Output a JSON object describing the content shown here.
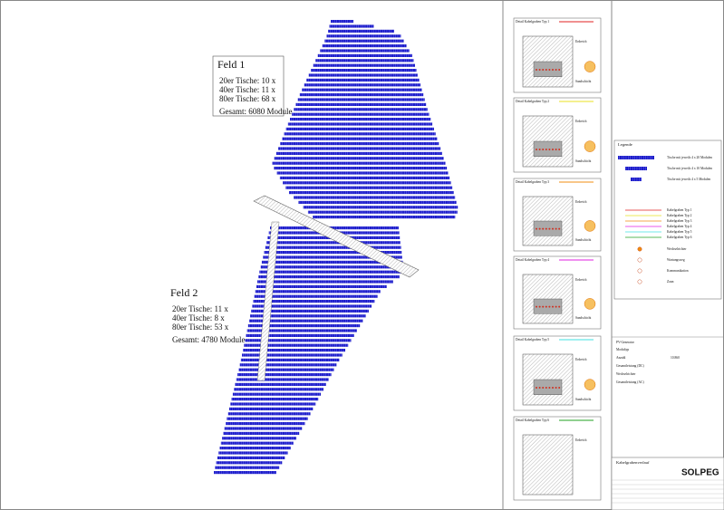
{
  "fields": [
    {
      "title": "Feld 1",
      "lines": [
        "20er Tische: 10 x",
        "40er Tische: 11 x",
        "80er Tische: 68 x"
      ],
      "total": "Gesamt: 6080 Module"
    },
    {
      "title": "Feld 2",
      "lines": [
        "20er Tische: 11 x",
        "40er Tische:   8 x",
        "80er Tische: 53 x"
      ],
      "total": "Gesamt: 4780 Module"
    }
  ],
  "details": [
    {
      "title": "Detail Kabelgraben Typ 1",
      "color": "#e02020",
      "labels": [
        "Erdreich",
        "Sandschicht"
      ]
    },
    {
      "title": "Detail Kabelgraben Typ 2",
      "color": "#e8e020",
      "labels": [
        "Erdreich",
        "Sandschicht"
      ]
    },
    {
      "title": "Detail Kabelgraben Typ 3",
      "color": "#f08c10",
      "labels": [
        "Erdreich",
        "Sandschicht"
      ]
    },
    {
      "title": "Detail Kabelgraben Typ 4",
      "color": "#e020e0",
      "labels": [
        "Erdreich",
        "Sandschicht"
      ]
    },
    {
      "title": "Detail Kabelgraben Typ 5",
      "color": "#40e0e0",
      "labels": [
        "Erdreich",
        "Sandschicht"
      ]
    },
    {
      "title": "Detail Kabelgraben Typ 6",
      "color": "#20a020",
      "labels": [
        "Erdreich"
      ]
    }
  ],
  "legend": {
    "title": "Legende",
    "modules": [
      "Tische mit jeweils 4 x 20 Modulen",
      "Tische mit jeweils 4 x 10 Modulen",
      "Tische mit jeweils 4 x 5 Modulen"
    ],
    "cables": [
      "Kabelgraben Typ 1",
      "Kabelgraben Typ 2",
      "Kabelgraben Typ 3",
      "Kabelgraben Typ 4",
      "Kabelgraben Typ 5",
      "Kabelgraben Typ 6"
    ],
    "others": [
      "Wechselrichter",
      "Wartungsweg",
      "Kommunikation",
      "Zaun"
    ]
  },
  "info": {
    "title": "PV-Generator",
    "rows": [
      [
        "Modultyp",
        ""
      ],
      [
        "Anzahl",
        "10.860"
      ],
      [
        "Gesamtleistung (DC)",
        ""
      ],
      [
        "Wechselrichter",
        ""
      ],
      [
        "Gesamtleistung (AC)",
        ""
      ]
    ]
  },
  "titleblock": {
    "name": "Kabelgrabenverlauf",
    "company": "SOLPEG"
  }
}
